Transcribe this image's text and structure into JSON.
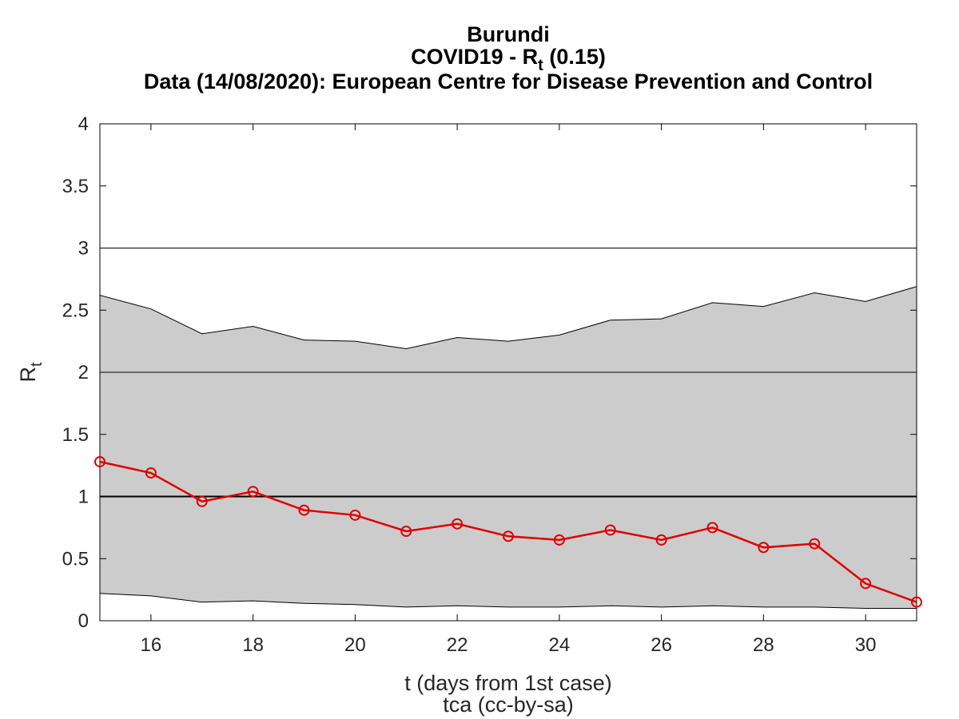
{
  "chart_data": {
    "type": "line",
    "title": "Burundi",
    "subtitle_prefix": "COVID19 - R",
    "subtitle_sub": "t",
    "subtitle_suffix": " (0.15)",
    "source_line": "Data (14/08/2020): European Centre for Disease Prevention and Control",
    "xlabel": "t (days from 1st case)",
    "credit": "tca (cc-by-sa)",
    "ylabel_main": "R",
    "ylabel_sub": "t",
    "xlim": [
      15,
      31
    ],
    "ylim": [
      0,
      4
    ],
    "x_ticks": [
      16,
      18,
      20,
      22,
      24,
      26,
      28,
      30
    ],
    "y_ticks": [
      0,
      0.5,
      1,
      1.5,
      2,
      2.5,
      3,
      3.5,
      4
    ],
    "y_tick_labels": [
      "0",
      "0.5",
      "1",
      "1.5",
      "2",
      "2.5",
      "3",
      "3.5",
      "4"
    ],
    "reference_lines": [
      1,
      2,
      3
    ],
    "grid": false,
    "x": [
      15,
      16,
      17,
      18,
      19,
      20,
      21,
      22,
      23,
      24,
      25,
      26,
      27,
      28,
      29,
      30,
      31
    ],
    "series": [
      {
        "values": [
          1.28,
          1.19,
          0.96,
          1.04,
          0.89,
          0.85,
          0.72,
          0.78,
          0.68,
          0.65,
          0.73,
          0.65,
          0.75,
          0.59,
          0.62,
          0.3,
          0.15
        ],
        "color": "#e00000",
        "marker": "circle"
      }
    ],
    "band": {
      "upper": [
        2.62,
        2.51,
        2.31,
        2.37,
        2.26,
        2.25,
        2.19,
        2.28,
        2.25,
        2.3,
        2.42,
        2.43,
        2.56,
        2.53,
        2.64,
        2.57,
        2.69
      ],
      "lower": [
        0.22,
        0.2,
        0.15,
        0.16,
        0.14,
        0.13,
        0.11,
        0.12,
        0.11,
        0.11,
        0.12,
        0.11,
        0.12,
        0.11,
        0.11,
        0.1,
        0.1
      ],
      "color": "#cccccc"
    }
  }
}
